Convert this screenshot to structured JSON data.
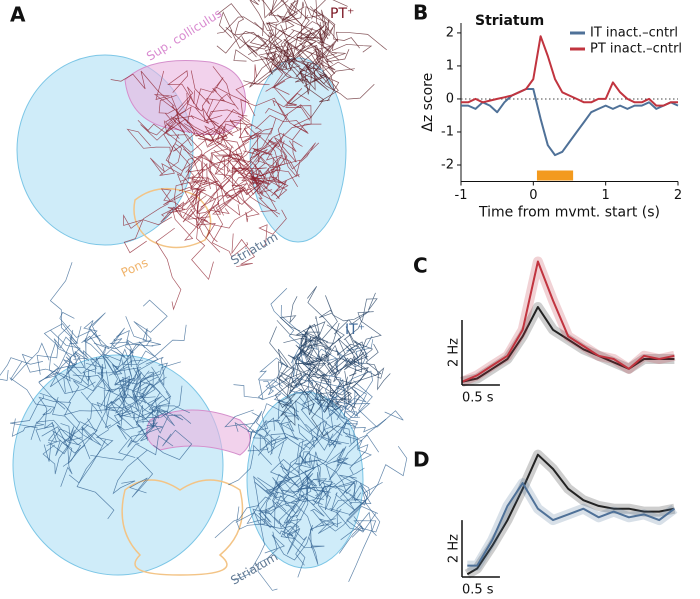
{
  "panel_a": {
    "letter": "A",
    "labels": [
      "PT⁺",
      "Sup. colliculus",
      "Pons",
      "Striatum",
      "IT⁺",
      "Striatum"
    ]
  },
  "chart_data": [
    {
      "type": "line",
      "panel": "B",
      "title": "Striatum",
      "xlabel": "Time from mvmt. start (s)",
      "ylabel": "Δz score",
      "x": [
        -1,
        -0.9,
        -0.8,
        -0.7,
        -0.6,
        -0.5,
        -0.4,
        -0.3,
        -0.2,
        -0.1,
        0,
        0.1,
        0.2,
        0.3,
        0.4,
        0.5,
        0.6,
        0.7,
        0.8,
        0.9,
        1,
        1.1,
        1.2,
        1.3,
        1.4,
        1.5,
        1.6,
        1.7,
        1.8,
        1.9,
        2
      ],
      "series": [
        {
          "name": "IT inact.–cntrl",
          "color": "#4f7198",
          "values": [
            -0.2,
            -0.2,
            -0.3,
            -0.1,
            -0.2,
            -0.4,
            -0.1,
            0.1,
            0.2,
            0.3,
            0.3,
            -0.6,
            -1.4,
            -1.7,
            -1.6,
            -1.3,
            -1.0,
            -0.7,
            -0.4,
            -0.3,
            -0.2,
            -0.3,
            -0.2,
            -0.3,
            -0.2,
            -0.2,
            -0.1,
            -0.3,
            -0.2,
            -0.1,
            -0.2
          ]
        },
        {
          "name": "PT inact.–cntrl",
          "color": "#c1343f",
          "values": [
            -0.1,
            -0.1,
            0,
            -0.1,
            -0.05,
            0,
            0.05,
            0.1,
            0.2,
            0.3,
            0.6,
            1.9,
            1.3,
            0.6,
            0.2,
            0.1,
            0,
            -0.1,
            -0.1,
            0,
            0,
            0.5,
            0.2,
            0,
            -0.1,
            -0.1,
            0,
            -0.2,
            -0.2,
            -0.1,
            -0.1
          ]
        }
      ],
      "xlim": [
        -1,
        2
      ],
      "ylim": [
        -2.5,
        2.3
      ],
      "xticks": [
        -1,
        0,
        1,
        2
      ],
      "yticks": [
        -2,
        -1,
        0,
        1,
        2
      ],
      "reference_line": 0,
      "highlight": {
        "range": [
          0.05,
          0.55
        ],
        "color": "#f39a1e"
      },
      "legend": "upper right"
    },
    {
      "type": "line",
      "panel": "C",
      "x": [
        0,
        0.2,
        0.4,
        0.6,
        0.8,
        1.0,
        1.2,
        1.4,
        1.6,
        1.8,
        2.0,
        2.2,
        2.4,
        2.6,
        2.8
      ],
      "series": [
        {
          "color": "#222222",
          "values": [
            0.1,
            0.2,
            0.5,
            0.8,
            1.5,
            2.4,
            1.7,
            1.4,
            1.1,
            0.9,
            0.7,
            0.5,
            0.8,
            0.8,
            0.8
          ]
        },
        {
          "color": "#c1343f",
          "values": [
            0.1,
            0.3,
            0.6,
            0.9,
            1.7,
            3.8,
            2.6,
            1.5,
            1.2,
            0.9,
            0.8,
            0.5,
            0.9,
            0.8,
            0.9
          ]
        }
      ],
      "xlim": [
        0,
        2.9
      ],
      "ylim": [
        0,
        4
      ],
      "scale_bars": {
        "x": 0.5,
        "x_label": "0.5 s",
        "y": 2,
        "y_label": "2 Hz"
      }
    },
    {
      "type": "line",
      "panel": "D",
      "x": [
        0.07,
        0.2,
        0.4,
        0.6,
        0.8,
        1.0,
        1.2,
        1.4,
        1.6,
        1.8,
        2.0,
        2.2,
        2.4,
        2.6,
        2.8
      ],
      "series": [
        {
          "color": "#222222",
          "values": [
            0.1,
            0.3,
            1.1,
            2.0,
            3.1,
            4.3,
            3.8,
            3.1,
            2.7,
            2.5,
            2.4,
            2.4,
            2.3,
            2.3,
            2.4
          ]
        },
        {
          "color": "#4f7198",
          "values": [
            0.4,
            0.4,
            1.3,
            2.5,
            3.3,
            2.4,
            2.0,
            2.2,
            2.4,
            2.1,
            2.3,
            2.1,
            2.2,
            2.0,
            2.4
          ]
        }
      ],
      "xlim": [
        0,
        2.9
      ],
      "ylim": [
        0,
        4.5
      ],
      "scale_bars": {
        "x": 0.5,
        "x_label": "0.5 s",
        "y": 2,
        "y_label": "2 Hz"
      }
    }
  ]
}
